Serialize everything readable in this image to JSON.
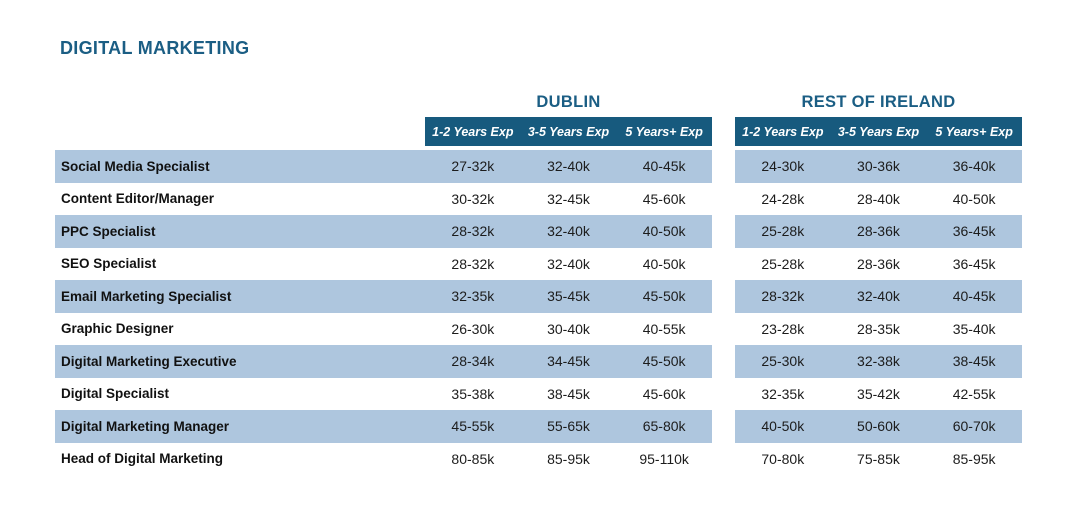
{
  "page": {
    "title": "DIGITAL MARKETING"
  },
  "table": {
    "regions": [
      {
        "label": "DUBLIN"
      },
      {
        "label": "REST OF IRELAND"
      }
    ],
    "exp_headers": [
      "1-2 Years Exp",
      "3-5 Years Exp",
      "5 Years+ Exp"
    ],
    "rows": [
      {
        "role": "Social Media Specialist",
        "dublin": [
          "27-32k",
          "32-40k",
          "40-45k"
        ],
        "rest_of_ireland": [
          "24-30k",
          "30-36k",
          "36-40k"
        ]
      },
      {
        "role": "Content Editor/Manager",
        "dublin": [
          "30-32k",
          "32-45k",
          "45-60k"
        ],
        "rest_of_ireland": [
          "24-28k",
          "28-40k",
          "40-50k"
        ]
      },
      {
        "role": "PPC Specialist",
        "dublin": [
          "28-32k",
          "32-40k",
          "40-50k"
        ],
        "rest_of_ireland": [
          "25-28k",
          "28-36k",
          "36-45k"
        ]
      },
      {
        "role": "SEO Specialist",
        "dublin": [
          "28-32k",
          "32-40k",
          "40-50k"
        ],
        "rest_of_ireland": [
          "25-28k",
          "28-36k",
          "36-45k"
        ]
      },
      {
        "role": "Email Marketing Specialist",
        "dublin": [
          "32-35k",
          "35-45k",
          "45-50k"
        ],
        "rest_of_ireland": [
          "28-32k",
          "32-40k",
          "40-45k"
        ]
      },
      {
        "role": "Graphic Designer",
        "dublin": [
          "26-30k",
          "30-40k",
          "40-55k"
        ],
        "rest_of_ireland": [
          "23-28k",
          "28-35k",
          "35-40k"
        ]
      },
      {
        "role": "Digital Marketing Executive",
        "dublin": [
          "28-34k",
          "34-45k",
          "45-50k"
        ],
        "rest_of_ireland": [
          "25-30k",
          "32-38k",
          "38-45k"
        ]
      },
      {
        "role": "Digital Specialist",
        "dublin": [
          "35-38k",
          "38-45k",
          "45-60k"
        ],
        "rest_of_ireland": [
          "32-35k",
          "35-42k",
          "42-55k"
        ]
      },
      {
        "role": "Digital Marketing Manager",
        "dublin": [
          "45-55k",
          "55-65k",
          "65-80k"
        ],
        "rest_of_ireland": [
          "40-50k",
          "50-60k",
          "60-70k"
        ]
      },
      {
        "role": "Head of Digital Marketing",
        "dublin": [
          "80-85k",
          "85-95k",
          "95-110k"
        ],
        "rest_of_ireland": [
          "70-80k",
          "75-85k",
          "85-95k"
        ]
      }
    ]
  },
  "colors": {
    "accent_band": "#175A7E",
    "row_stripe": "#AEC6DE",
    "heading_blue": "#1B5E84",
    "body_text": "#1C1C1C"
  }
}
